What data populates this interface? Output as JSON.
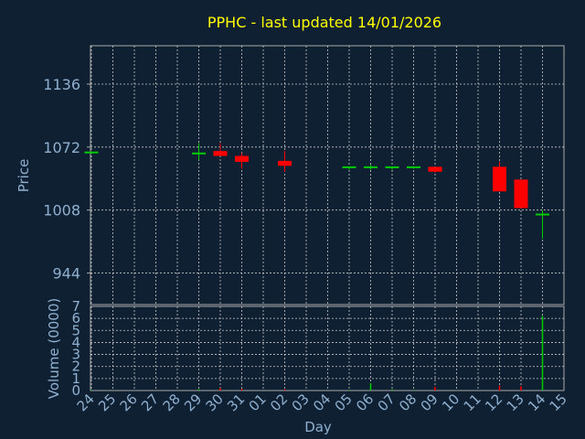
{
  "chart_data": {
    "type": "candlestick",
    "title": "PPHC - last updated 14/01/2026",
    "ylabel": "Price",
    "xlabel": "Day",
    "volume_label": "Volume (0000)",
    "price_ticks": [
      944,
      1008,
      1072,
      1136
    ],
    "price_ylim": [
      912,
      1175
    ],
    "volume_ticks": [
      0,
      1,
      2,
      3,
      4,
      5,
      6,
      7
    ],
    "volume_ylim": [
      0,
      7
    ],
    "x_labels": [
      "24",
      "25",
      "26",
      "27",
      "28",
      "29",
      "30",
      "31",
      "01",
      "02",
      "03",
      "04",
      "05",
      "06",
      "07",
      "08",
      "09",
      "10",
      "11",
      "12",
      "13",
      "14",
      "15"
    ],
    "grid": true,
    "colors": {
      "up": "#00cc00",
      "down": "#ff0000",
      "background": "#0f2033",
      "grid": "#c8c8c8",
      "title": "#ffff00",
      "axis_text": "#8fb0cf"
    },
    "candles": [
      {
        "day": "24",
        "open": 1067,
        "high": 1067,
        "low": 1067,
        "close": 1067,
        "volume": 0.05
      },
      {
        "day": "29",
        "open": 1066,
        "high": 1076,
        "low": 1059,
        "close": 1066,
        "volume": 0.1
      },
      {
        "day": "30",
        "open": 1068,
        "high": 1076,
        "low": 1063,
        "close": 1063,
        "volume": 0.2
      },
      {
        "day": "31",
        "open": 1063,
        "high": 1066,
        "low": 1050,
        "close": 1057,
        "volume": 0.15
      },
      {
        "day": "02",
        "open": 1058,
        "high": 1068,
        "low": 1047,
        "close": 1053,
        "volume": 0.1
      },
      {
        "day": "05",
        "open": 1051,
        "high": 1052,
        "low": 1049,
        "close": 1052,
        "volume": 0.05
      },
      {
        "day": "06",
        "open": 1051,
        "high": 1054,
        "low": 1049,
        "close": 1052,
        "volume": 0.6
      },
      {
        "day": "07",
        "open": 1051,
        "high": 1052,
        "low": 1049,
        "close": 1052,
        "volume": 0.1
      },
      {
        "day": "08",
        "open": 1051,
        "high": 1052,
        "low": 1050,
        "close": 1052,
        "volume": 0.05
      },
      {
        "day": "09",
        "open": 1052,
        "high": 1052,
        "low": 1046,
        "close": 1047,
        "volume": 0.3
      },
      {
        "day": "12",
        "open": 1052,
        "high": 1057,
        "low": 1027,
        "close": 1027,
        "volume": 0.4
      },
      {
        "day": "13",
        "open": 1039,
        "high": 1039,
        "low": 1010,
        "close": 1010,
        "volume": 0.35
      },
      {
        "day": "14",
        "open": 1003,
        "high": 1008,
        "low": 979,
        "close": 1004,
        "volume": 6.2
      }
    ]
  }
}
